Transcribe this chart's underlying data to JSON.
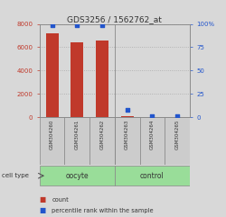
{
  "title": "GDS3256 / 1562762_at",
  "samples": [
    "GSM304260",
    "GSM304261",
    "GSM304262",
    "GSM304263",
    "GSM304264",
    "GSM304265"
  ],
  "counts": [
    7200,
    6450,
    6600,
    80,
    15,
    10
  ],
  "percentiles": [
    99,
    99,
    99,
    8,
    1.5,
    1
  ],
  "bar_color": "#c0392b",
  "dot_color": "#2255cc",
  "ylim_left": [
    0,
    8000
  ],
  "ylim_right": [
    0,
    100
  ],
  "yticks_left": [
    0,
    2000,
    4000,
    6000,
    8000
  ],
  "ytick_labels_right": [
    "0",
    "25",
    "50",
    "75",
    "100%"
  ],
  "yticks_right": [
    0,
    25,
    50,
    75,
    100
  ],
  "groups": [
    {
      "label": "oocyte",
      "indices": [
        0,
        1,
        2
      ]
    },
    {
      "label": "control",
      "indices": [
        3,
        4,
        5
      ]
    }
  ],
  "group_color": "#99dd99",
  "sample_box_color": "#cccccc",
  "cell_type_label": "cell type",
  "legend_count_label": "count",
  "legend_pct_label": "percentile rank within the sample",
  "bg_color": "#d8d8d8",
  "plot_bg": "#d8d8d8",
  "grid_color": "#aaaaaa",
  "bar_width": 0.5
}
